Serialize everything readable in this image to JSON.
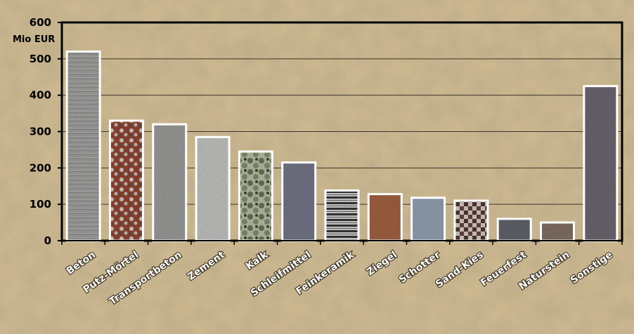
{
  "chart_data": {
    "type": "bar",
    "ylabel": "Mio EUR",
    "ylim": [
      0,
      600
    ],
    "yticks": [
      0,
      100,
      200,
      300,
      400,
      500,
      600
    ],
    "grid": true,
    "categories": [
      "Beton",
      "Putz-Mörtel",
      "Transportbeton",
      "Zement",
      "Kalk",
      "Schleifmittel",
      "Feinkeramik",
      "Ziegel",
      "Schotter",
      "Sand-Kies",
      "Feuerfest",
      "Naturstein",
      "Sonstige"
    ],
    "values": [
      520,
      330,
      320,
      285,
      245,
      215,
      138,
      128,
      118,
      110,
      60,
      50,
      425
    ],
    "bar_styles": [
      {
        "texture": "concrete-streaks",
        "base": "#a7a8a6"
      },
      {
        "texture": "plaster-red-white",
        "base": "#9e4a35"
      },
      {
        "texture": "smooth-gray",
        "base": "#a9aaa8"
      },
      {
        "texture": "light-cement",
        "base": "#d4d4d2"
      },
      {
        "texture": "green-mottled",
        "base": "#9aa88a"
      },
      {
        "texture": "blue-gray-grain",
        "base": "#7e8194"
      },
      {
        "texture": "horizontal-stripes",
        "base": "#8a8a8a"
      },
      {
        "texture": "brick-red",
        "base": "#b06a48"
      },
      {
        "texture": "blue-speckle",
        "base": "#9fb0c2"
      },
      {
        "texture": "brown-checker",
        "base": "#7a5a50"
      },
      {
        "texture": "dark-slate",
        "base": "#6a6c74"
      },
      {
        "texture": "stone-brown",
        "base": "#8e7a6e"
      },
      {
        "texture": "dark-granite",
        "base": "#767079"
      }
    ],
    "colors": {
      "background": "#cfbb92",
      "axis": "#000000",
      "bar_border": "#ffffff",
      "grid": "#3c3427"
    }
  }
}
